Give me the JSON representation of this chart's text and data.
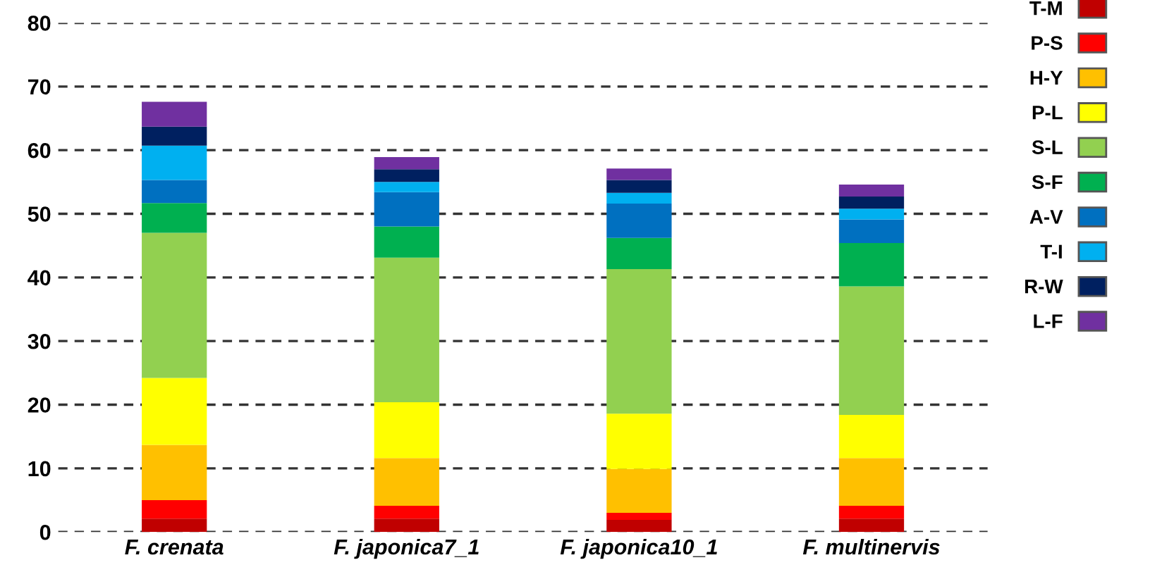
{
  "chart_data": {
    "type": "bar",
    "stacked": true,
    "categories": [
      "F. crenata",
      "F. japonica7_1",
      "F. japonica10_1",
      "F. multinervis"
    ],
    "series": [
      {
        "name": "T-M",
        "color": "#c00000",
        "values": [
          2.1,
          2.1,
          1.9,
          2.1
        ]
      },
      {
        "name": "P-S",
        "color": "#ff0000",
        "values": [
          2.9,
          2.0,
          1.1,
          2.0
        ]
      },
      {
        "name": "H-Y",
        "color": "#ffc000",
        "values": [
          8.7,
          7.5,
          6.9,
          7.5
        ]
      },
      {
        "name": "P-L",
        "color": "#ffff00",
        "values": [
          10.5,
          8.8,
          8.7,
          6.8
        ]
      },
      {
        "name": "S-L",
        "color": "#92d050",
        "values": [
          22.8,
          22.7,
          22.7,
          20.2
        ]
      },
      {
        "name": "S-F",
        "color": "#00b050",
        "values": [
          4.7,
          4.9,
          4.9,
          6.8
        ]
      },
      {
        "name": "A-V",
        "color": "#0070c0",
        "values": [
          3.6,
          5.4,
          5.4,
          3.7
        ]
      },
      {
        "name": "T-I",
        "color": "#00b0f0",
        "values": [
          5.4,
          1.6,
          1.7,
          1.7
        ]
      },
      {
        "name": "R-W",
        "color": "#002060",
        "values": [
          3.0,
          2.0,
          2.0,
          1.9
        ]
      },
      {
        "name": "L-F",
        "color": "#7030a0",
        "values": [
          3.9,
          1.9,
          1.8,
          1.9
        ]
      }
    ],
    "ylim": [
      0,
      80
    ],
    "yticks": [
      0,
      10,
      20,
      30,
      40,
      50,
      60,
      70,
      80
    ],
    "grid": "y",
    "legend": "right"
  }
}
